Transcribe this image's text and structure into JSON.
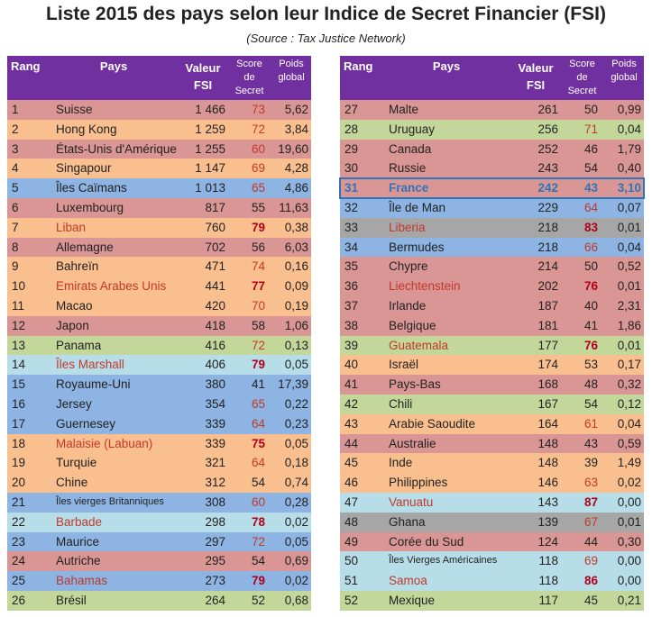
{
  "title": "Liste 2015 des pays selon leur Indice de Secret Financier (FSI)",
  "subtitle": "(Source : Tax Justice Network)",
  "headers": {
    "rang": "Rang",
    "pays": "Pays",
    "valeur": "Valeur FSI",
    "score": "Score de Secret",
    "poids": "Poids global"
  },
  "colors": {
    "header": "#7030a0",
    "rose": "#da9694",
    "orange": "#fabf8f",
    "blue": "#8db4e2",
    "green": "#c4d79b",
    "lightblue": "#b7dee8",
    "gray": "#a6a6a6"
  },
  "left": [
    {
      "rang": "1",
      "pays": "Suisse",
      "fsi": "1 466",
      "score": "73",
      "poids": "5,62",
      "bg": "rose",
      "s": "r"
    },
    {
      "rang": "2",
      "pays": "Hong Kong",
      "fsi": "1 259",
      "score": "72",
      "poids": "3,84",
      "bg": "orange",
      "s": "r"
    },
    {
      "rang": "3",
      "pays": "États-Unis d'Amérique",
      "fsi": "1 255",
      "score": "60",
      "poids": "19,60",
      "bg": "rose",
      "s": "r"
    },
    {
      "rang": "4",
      "pays": "Singapour",
      "fsi": "1 147",
      "score": "69",
      "poids": "4,28",
      "bg": "orange",
      "s": "r"
    },
    {
      "rang": "5",
      "pays": "Îles Caïmans",
      "fsi": "1 013",
      "score": "65",
      "poids": "4,86",
      "bg": "blue",
      "s": "r"
    },
    {
      "rang": "6",
      "pays": "Luxembourg",
      "fsi": "817",
      "score": "55",
      "poids": "11,63",
      "bg": "rose",
      "s": ""
    },
    {
      "rang": "7",
      "pays": "Liban",
      "fsi": "760",
      "score": "79",
      "poids": "0,38",
      "bg": "orange",
      "s": "b",
      "flag": true
    },
    {
      "rang": "8",
      "pays": "Allemagne",
      "fsi": "702",
      "score": "56",
      "poids": "6,03",
      "bg": "rose",
      "s": ""
    },
    {
      "rang": "9",
      "pays": "Bahreïn",
      "fsi": "471",
      "score": "74",
      "poids": "0,16",
      "bg": "orange",
      "s": "r"
    },
    {
      "rang": "10",
      "pays": "Emirats Arabes Unis",
      "fsi": "441",
      "score": "77",
      "poids": "0,09",
      "bg": "orange",
      "s": "b",
      "flag": true
    },
    {
      "rang": "11",
      "pays": "Macao",
      "fsi": "420",
      "score": "70",
      "poids": "0,19",
      "bg": "orange",
      "s": "r"
    },
    {
      "rang": "12",
      "pays": "Japon",
      "fsi": "418",
      "score": "58",
      "poids": "1,06",
      "bg": "rose",
      "s": ""
    },
    {
      "rang": "13",
      "pays": "Panama",
      "fsi": "416",
      "score": "72",
      "poids": "0,13",
      "bg": "green",
      "s": "r"
    },
    {
      "rang": "14",
      "pays": "Îles Marshall",
      "fsi": "406",
      "score": "79",
      "poids": "0,05",
      "bg": "lightblue",
      "s": "b",
      "flag": true
    },
    {
      "rang": "15",
      "pays": "Royaume-Uni",
      "fsi": "380",
      "score": "41",
      "poids": "17,39",
      "bg": "blue",
      "s": ""
    },
    {
      "rang": "16",
      "pays": "Jersey",
      "fsi": "354",
      "score": "65",
      "poids": "0,22",
      "bg": "blue",
      "s": "r"
    },
    {
      "rang": "17",
      "pays": "Guernesey",
      "fsi": "339",
      "score": "64",
      "poids": "0,23",
      "bg": "blue",
      "s": "r"
    },
    {
      "rang": "18",
      "pays": "Malaisie (Labuan)",
      "fsi": "339",
      "score": "75",
      "poids": "0,05",
      "bg": "orange",
      "s": "b",
      "flag": true
    },
    {
      "rang": "19",
      "pays": "Turquie",
      "fsi": "321",
      "score": "64",
      "poids": "0,18",
      "bg": "orange",
      "s": "r"
    },
    {
      "rang": "20",
      "pays": "Chine",
      "fsi": "312",
      "score": "54",
      "poids": "0,74",
      "bg": "orange",
      "s": ""
    },
    {
      "rang": "21",
      "pays": "Îles vierges Britanniques",
      "fsi": "308",
      "score": "60",
      "poids": "0,28",
      "bg": "blue",
      "s": "r",
      "small": true
    },
    {
      "rang": "22",
      "pays": "Barbade",
      "fsi": "298",
      "score": "78",
      "poids": "0,02",
      "bg": "lightblue",
      "s": "b",
      "flag": true
    },
    {
      "rang": "23",
      "pays": "Maurice",
      "fsi": "297",
      "score": "72",
      "poids": "0,05",
      "bg": "blue",
      "s": "r"
    },
    {
      "rang": "24",
      "pays": "Autriche",
      "fsi": "295",
      "score": "54",
      "poids": "0,69",
      "bg": "rose",
      "s": ""
    },
    {
      "rang": "25",
      "pays": "Bahamas",
      "fsi": "273",
      "score": "79",
      "poids": "0,02",
      "bg": "blue",
      "s": "b",
      "flag": true
    },
    {
      "rang": "26",
      "pays": "Brésil",
      "fsi": "264",
      "score": "52",
      "poids": "0,68",
      "bg": "green",
      "s": ""
    }
  ],
  "right": [
    {
      "rang": "27",
      "pays": "Malte",
      "fsi": "261",
      "score": "50",
      "poids": "0,99",
      "bg": "rose",
      "s": ""
    },
    {
      "rang": "28",
      "pays": "Uruguay",
      "fsi": "256",
      "score": "71",
      "poids": "0,04",
      "bg": "green",
      "s": "r"
    },
    {
      "rang": "29",
      "pays": "Canada",
      "fsi": "252",
      "score": "46",
      "poids": "1,79",
      "bg": "rose",
      "s": ""
    },
    {
      "rang": "30",
      "pays": "Russie",
      "fsi": "243",
      "score": "54",
      "poids": "0,40",
      "bg": "rose",
      "s": ""
    },
    {
      "rang": "31",
      "pays": "France",
      "fsi": "242",
      "score": "43",
      "poids": "3,10",
      "bg": "rose",
      "s": "",
      "highlight": true
    },
    {
      "rang": "32",
      "pays": "Île de Man",
      "fsi": "229",
      "score": "64",
      "poids": "0,07",
      "bg": "blue",
      "s": "r"
    },
    {
      "rang": "33",
      "pays": "Liberia",
      "fsi": "218",
      "score": "83",
      "poids": "0,01",
      "bg": "gray",
      "s": "b",
      "flag": true
    },
    {
      "rang": "34",
      "pays": "Bermudes",
      "fsi": "218",
      "score": "66",
      "poids": "0,04",
      "bg": "blue",
      "s": "r"
    },
    {
      "rang": "35",
      "pays": "Chypre",
      "fsi": "214",
      "score": "50",
      "poids": "0,52",
      "bg": "rose",
      "s": ""
    },
    {
      "rang": "36",
      "pays": "Liechtenstein",
      "fsi": "202",
      "score": "76",
      "poids": "0,01",
      "bg": "rose",
      "s": "b",
      "flag": true
    },
    {
      "rang": "37",
      "pays": "Irlande",
      "fsi": "187",
      "score": "40",
      "poids": "2,31",
      "bg": "rose",
      "s": ""
    },
    {
      "rang": "38",
      "pays": "Belgique",
      "fsi": "181",
      "score": "41",
      "poids": "1,86",
      "bg": "rose",
      "s": ""
    },
    {
      "rang": "39",
      "pays": "Guatemala",
      "fsi": "177",
      "score": "76",
      "poids": "0,01",
      "bg": "green",
      "s": "b",
      "flag": true
    },
    {
      "rang": "40",
      "pays": "Israël",
      "fsi": "174",
      "score": "53",
      "poids": "0,17",
      "bg": "orange",
      "s": ""
    },
    {
      "rang": "41",
      "pays": "Pays-Bas",
      "fsi": "168",
      "score": "48",
      "poids": "0,32",
      "bg": "rose",
      "s": ""
    },
    {
      "rang": "42",
      "pays": "Chili",
      "fsi": "167",
      "score": "54",
      "poids": "0,12",
      "bg": "green",
      "s": ""
    },
    {
      "rang": "43",
      "pays": "Arabie Saoudite",
      "fsi": "164",
      "score": "61",
      "poids": "0,04",
      "bg": "orange",
      "s": "r"
    },
    {
      "rang": "44",
      "pays": "Australie",
      "fsi": "148",
      "score": "43",
      "poids": "0,59",
      "bg": "rose",
      "s": ""
    },
    {
      "rang": "45",
      "pays": "Inde",
      "fsi": "148",
      "score": "39",
      "poids": "1,49",
      "bg": "orange",
      "s": ""
    },
    {
      "rang": "46",
      "pays": "Philippines",
      "fsi": "146",
      "score": "63",
      "poids": "0,02",
      "bg": "orange",
      "s": "r"
    },
    {
      "rang": "47",
      "pays": "Vanuatu",
      "fsi": "143",
      "score": "87",
      "poids": "0,00",
      "bg": "lightblue",
      "s": "b",
      "flag": true
    },
    {
      "rang": "48",
      "pays": "Ghana",
      "fsi": "139",
      "score": "67",
      "poids": "0,01",
      "bg": "gray",
      "s": "r"
    },
    {
      "rang": "49",
      "pays": "Corée du Sud",
      "fsi": "124",
      "score": "44",
      "poids": "0,30",
      "bg": "rose",
      "s": ""
    },
    {
      "rang": "50",
      "pays": "Îles Vierges Américaines",
      "fsi": "118",
      "score": "69",
      "poids": "0,00",
      "bg": "lightblue",
      "s": "r",
      "small": true
    },
    {
      "rang": "51",
      "pays": "Samoa",
      "fsi": "118",
      "score": "86",
      "poids": "0,00",
      "bg": "lightblue",
      "s": "b",
      "flag": true
    },
    {
      "rang": "52",
      "pays": "Mexique",
      "fsi": "117",
      "score": "45",
      "poids": "0,21",
      "bg": "green",
      "s": ""
    }
  ]
}
